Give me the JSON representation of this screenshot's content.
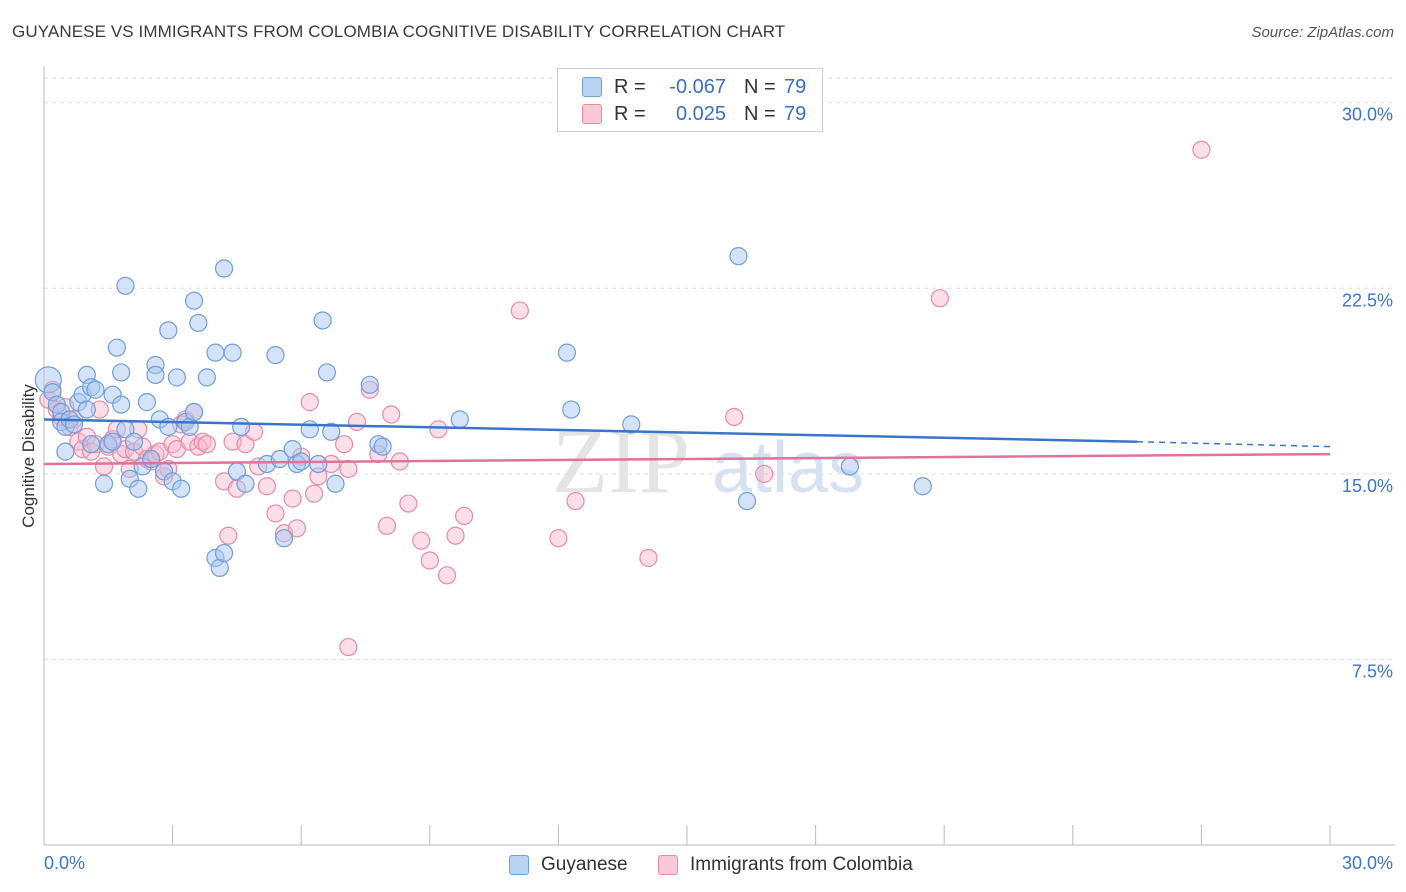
{
  "header": {
    "title": "GUYANESE VS IMMIGRANTS FROM COLOMBIA COGNITIVE DISABILITY CORRELATION CHART",
    "source": "Source: ZipAtlas.com"
  },
  "legend": {
    "rows": [
      {
        "r_label": "R =",
        "r_value": "-0.067",
        "n_label": "N =",
        "n_value": "79"
      },
      {
        "r_label": "R =",
        "r_value": "0.025",
        "n_label": "N =",
        "n_value": "79"
      }
    ]
  },
  "bottom_legend": {
    "items": [
      {
        "label": "Guyanese"
      },
      {
        "label": "Immigrants from Colombia"
      }
    ]
  },
  "watermark": {
    "zip": "ZIP",
    "atlas": "atlas"
  },
  "colors": {
    "guyanese_fill": "#a9c7ef",
    "guyanese_stroke": "#6f9ed8",
    "guyanese_line": "#3a75cc",
    "colombia_fill": "#f7b8cc",
    "colombia_stroke": "#e88aa8",
    "colombia_line": "#e0739a",
    "tick_text": "#3a75cc",
    "grid": "#dddddd"
  },
  "chart_data": {
    "type": "scatter",
    "ylabel": "Cognitive Disability",
    "xlim": [
      0,
      30
    ],
    "ylim": [
      0,
      31
    ],
    "x_tick_labels": [
      "0.0%",
      "30.0%"
    ],
    "y_ticks": [
      7.5,
      15.0,
      22.5,
      30.0
    ],
    "y_tick_labels": [
      "7.5%",
      "15.0%",
      "22.5%",
      "30.0%"
    ],
    "grid": true,
    "series": [
      {
        "name": "Guyanese",
        "trend": {
          "x": [
            0,
            25.5
          ],
          "y": [
            17.2,
            16.3
          ],
          "dashed_to": [
            30,
            16.1
          ]
        },
        "points": [
          [
            0.1,
            18.8
          ],
          [
            0.2,
            18.3
          ],
          [
            0.3,
            17.8
          ],
          [
            0.4,
            17.5
          ],
          [
            0.4,
            17.1
          ],
          [
            0.5,
            16.9
          ],
          [
            0.5,
            15.9
          ],
          [
            0.6,
            17.2
          ],
          [
            0.7,
            17.0
          ],
          [
            0.8,
            17.9
          ],
          [
            0.9,
            18.2
          ],
          [
            1.0,
            17.6
          ],
          [
            1.0,
            19.0
          ],
          [
            1.1,
            18.5
          ],
          [
            1.1,
            16.2
          ],
          [
            1.2,
            18.4
          ],
          [
            1.4,
            14.6
          ],
          [
            1.5,
            16.2
          ],
          [
            1.6,
            18.2
          ],
          [
            1.6,
            16.3
          ],
          [
            1.7,
            20.1
          ],
          [
            1.8,
            17.8
          ],
          [
            1.8,
            19.1
          ],
          [
            1.9,
            16.8
          ],
          [
            1.9,
            22.6
          ],
          [
            2.0,
            14.8
          ],
          [
            2.1,
            16.3
          ],
          [
            2.2,
            14.4
          ],
          [
            2.3,
            15.3
          ],
          [
            2.4,
            17.9
          ],
          [
            2.5,
            15.6
          ],
          [
            2.6,
            19.4
          ],
          [
            2.6,
            19.0
          ],
          [
            2.7,
            17.2
          ],
          [
            2.8,
            15.1
          ],
          [
            2.9,
            16.9
          ],
          [
            2.9,
            20.8
          ],
          [
            3.0,
            14.7
          ],
          [
            3.1,
            18.9
          ],
          [
            3.2,
            14.4
          ],
          [
            3.3,
            17.1
          ],
          [
            3.4,
            16.9
          ],
          [
            3.5,
            17.5
          ],
          [
            3.5,
            22.0
          ],
          [
            3.6,
            21.1
          ],
          [
            3.8,
            18.9
          ],
          [
            4.0,
            19.9
          ],
          [
            4.0,
            11.6
          ],
          [
            4.1,
            11.2
          ],
          [
            4.2,
            11.8
          ],
          [
            4.2,
            23.3
          ],
          [
            4.4,
            19.9
          ],
          [
            4.5,
            15.1
          ],
          [
            4.6,
            16.9
          ],
          [
            4.7,
            14.6
          ],
          [
            5.2,
            15.4
          ],
          [
            5.4,
            19.8
          ],
          [
            5.5,
            15.6
          ],
          [
            5.6,
            12.4
          ],
          [
            5.8,
            16.0
          ],
          [
            5.9,
            15.4
          ],
          [
            6.0,
            15.5
          ],
          [
            6.2,
            16.8
          ],
          [
            6.4,
            15.4
          ],
          [
            6.5,
            21.2
          ],
          [
            6.6,
            19.1
          ],
          [
            6.7,
            16.7
          ],
          [
            6.8,
            14.6
          ],
          [
            7.6,
            18.6
          ],
          [
            7.8,
            16.2
          ],
          [
            7.9,
            16.1
          ],
          [
            9.7,
            17.2
          ],
          [
            12.2,
            19.9
          ],
          [
            12.3,
            17.6
          ],
          [
            13.7,
            17.0
          ],
          [
            16.2,
            23.8
          ],
          [
            16.4,
            13.9
          ],
          [
            18.8,
            15.3
          ],
          [
            20.5,
            14.5
          ]
        ]
      },
      {
        "name": "Immigrants from Colombia",
        "trend": {
          "x": [
            0,
            30
          ],
          "y": [
            15.4,
            15.8
          ]
        },
        "points": [
          [
            0.1,
            18.0
          ],
          [
            0.2,
            18.4
          ],
          [
            0.3,
            17.6
          ],
          [
            0.4,
            17.3
          ],
          [
            0.5,
            17.7
          ],
          [
            0.6,
            16.9
          ],
          [
            0.7,
            17.2
          ],
          [
            0.8,
            16.3
          ],
          [
            0.9,
            16.0
          ],
          [
            1.0,
            16.5
          ],
          [
            1.1,
            15.9
          ],
          [
            1.2,
            16.2
          ],
          [
            1.3,
            17.6
          ],
          [
            1.4,
            15.3
          ],
          [
            1.5,
            16.1
          ],
          [
            1.6,
            16.4
          ],
          [
            1.7,
            16.8
          ],
          [
            1.8,
            15.8
          ],
          [
            1.9,
            16.0
          ],
          [
            2.0,
            15.2
          ],
          [
            2.1,
            15.9
          ],
          [
            2.2,
            16.8
          ],
          [
            2.3,
            16.1
          ],
          [
            2.4,
            15.6
          ],
          [
            2.5,
            15.5
          ],
          [
            2.6,
            15.8
          ],
          [
            2.7,
            15.9
          ],
          [
            2.8,
            14.9
          ],
          [
            2.9,
            15.2
          ],
          [
            3.0,
            16.2
          ],
          [
            3.1,
            16.0
          ],
          [
            3.2,
            17.0
          ],
          [
            3.3,
            17.2
          ],
          [
            3.4,
            16.3
          ],
          [
            3.5,
            17.5
          ],
          [
            3.6,
            16.1
          ],
          [
            3.7,
            16.3
          ],
          [
            3.8,
            16.2
          ],
          [
            4.2,
            14.7
          ],
          [
            4.3,
            12.5
          ],
          [
            4.4,
            16.3
          ],
          [
            4.5,
            14.4
          ],
          [
            4.7,
            16.2
          ],
          [
            4.9,
            16.7
          ],
          [
            5.0,
            15.3
          ],
          [
            5.2,
            14.5
          ],
          [
            5.4,
            13.4
          ],
          [
            5.6,
            12.6
          ],
          [
            5.8,
            14.0
          ],
          [
            5.9,
            12.8
          ],
          [
            6.0,
            15.7
          ],
          [
            6.2,
            17.9
          ],
          [
            6.3,
            14.2
          ],
          [
            6.4,
            14.9
          ],
          [
            6.7,
            15.4
          ],
          [
            7.0,
            16.2
          ],
          [
            7.1,
            15.2
          ],
          [
            7.3,
            17.1
          ],
          [
            7.6,
            18.4
          ],
          [
            7.8,
            15.8
          ],
          [
            8.0,
            12.9
          ],
          [
            8.1,
            17.4
          ],
          [
            8.3,
            15.5
          ],
          [
            8.5,
            13.8
          ],
          [
            8.8,
            12.3
          ],
          [
            9.0,
            11.5
          ],
          [
            9.2,
            16.8
          ],
          [
            9.4,
            10.9
          ],
          [
            9.6,
            12.5
          ],
          [
            9.8,
            13.3
          ],
          [
            7.1,
            8.0
          ],
          [
            11.1,
            21.6
          ],
          [
            12.0,
            12.4
          ],
          [
            12.4,
            13.9
          ],
          [
            14.1,
            11.6
          ],
          [
            16.1,
            17.3
          ],
          [
            16.8,
            15.0
          ],
          [
            20.9,
            22.1
          ],
          [
            27.0,
            28.1
          ]
        ]
      }
    ]
  }
}
